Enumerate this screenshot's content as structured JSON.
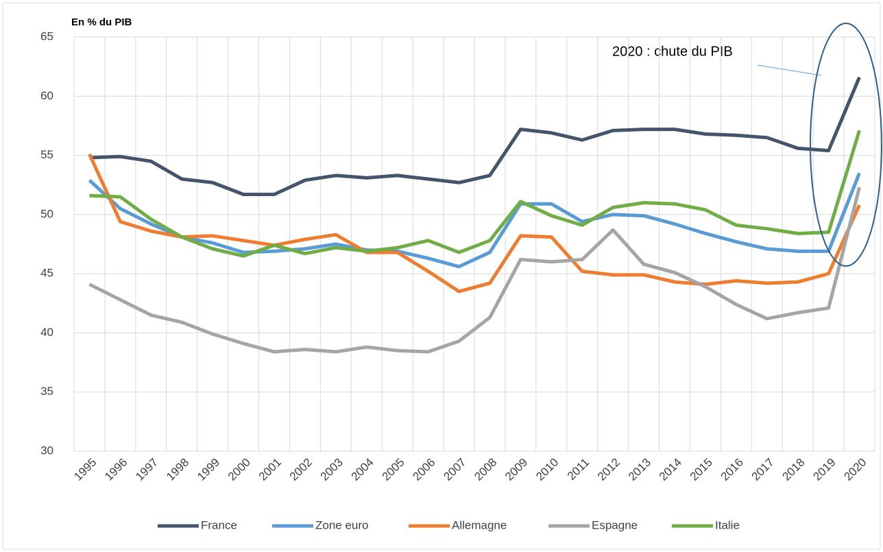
{
  "chart_data": {
    "type": "line",
    "title": "En % du PIB",
    "annotation": "2020 : chute du PIB",
    "categories": [
      "1995",
      "1996",
      "1997",
      "1998",
      "1999",
      "2000",
      "2001",
      "2002",
      "2003",
      "2004",
      "2005",
      "2006",
      "2007",
      "2008",
      "2009",
      "2010",
      "2011",
      "2012",
      "2013",
      "2014",
      "2015",
      "2016",
      "2017",
      "2018",
      "2019",
      "2020"
    ],
    "series": [
      {
        "name": "France",
        "color": "#44546a",
        "values": [
          54.8,
          54.9,
          54.5,
          53.0,
          52.7,
          51.7,
          51.7,
          52.9,
          53.3,
          53.1,
          53.3,
          53.0,
          52.7,
          53.3,
          57.2,
          56.9,
          56.3,
          57.1,
          57.2,
          57.2,
          56.8,
          56.7,
          56.5,
          55.6,
          55.4,
          61.6
        ]
      },
      {
        "name": "Zone euro",
        "color": "#5b9bd5",
        "values": [
          52.9,
          50.5,
          49.2,
          48.1,
          47.6,
          46.8,
          46.9,
          47.1,
          47.5,
          47.0,
          46.9,
          46.3,
          45.6,
          46.8,
          50.9,
          50.9,
          49.4,
          50.0,
          49.9,
          49.2,
          48.4,
          47.7,
          47.1,
          46.9,
          46.9,
          53.5
        ]
      },
      {
        "name": "Allemagne",
        "color": "#ed7d31",
        "values": [
          55.1,
          49.4,
          48.6,
          48.1,
          48.2,
          47.8,
          47.4,
          47.9,
          48.3,
          46.8,
          46.8,
          45.2,
          43.5,
          44.2,
          48.2,
          48.1,
          45.2,
          44.9,
          44.9,
          44.3,
          44.1,
          44.4,
          44.2,
          44.3,
          45.0,
          50.8
        ]
      },
      {
        "name": "Espagne",
        "color": "#a5a5a5",
        "values": [
          44.1,
          42.8,
          41.5,
          40.9,
          39.9,
          39.1,
          38.4,
          38.6,
          38.4,
          38.8,
          38.5,
          38.4,
          39.3,
          41.3,
          46.2,
          46.0,
          46.2,
          48.7,
          45.8,
          45.1,
          43.9,
          42.4,
          41.2,
          41.7,
          42.1,
          52.3
        ]
      },
      {
        "name": "Italie",
        "color": "#70ad47",
        "values": [
          51.6,
          51.5,
          49.6,
          48.1,
          47.1,
          46.5,
          47.4,
          46.7,
          47.2,
          46.9,
          47.2,
          47.8,
          46.8,
          47.8,
          51.1,
          49.9,
          49.1,
          50.6,
          51.0,
          50.9,
          50.4,
          49.1,
          48.8,
          48.4,
          48.5,
          57.1
        ]
      }
    ],
    "ylim": [
      30,
      65
    ],
    "yticks": [
      30,
      35,
      40,
      45,
      50,
      55,
      60,
      65
    ],
    "grid": true,
    "legend": "bottom"
  }
}
